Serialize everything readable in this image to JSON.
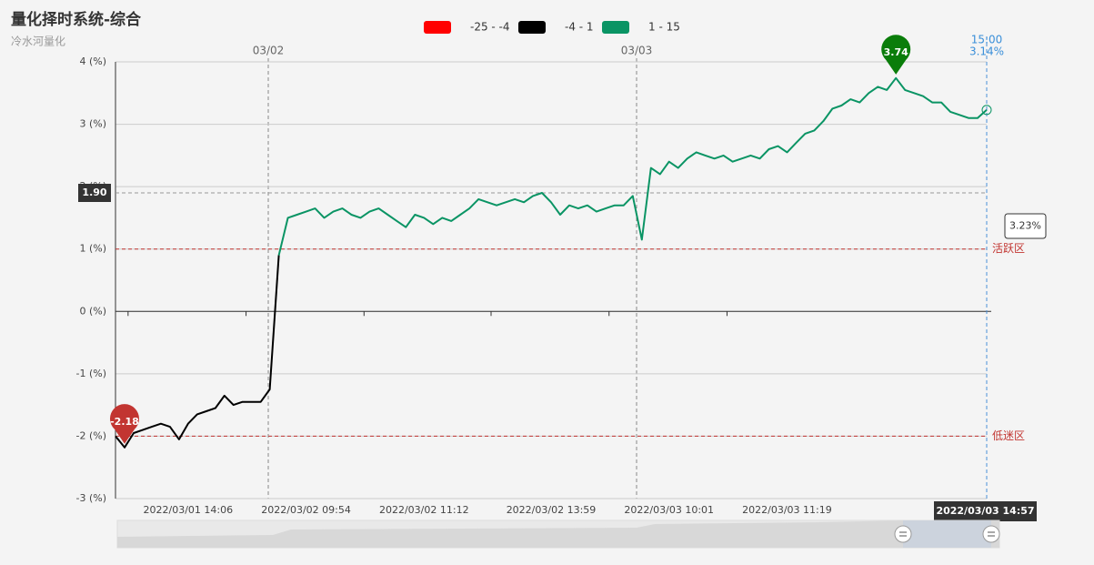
{
  "chart_data": {
    "type": "line",
    "title": "量化择时系统-综合",
    "subtitle": "冷水河量化",
    "visual_map": [
      {
        "min": -25,
        "max": -4,
        "label": "-25 - -4",
        "color": "#ff0000"
      },
      {
        "min": -4,
        "max": 1,
        "label": "-4 - 1",
        "color": "#000000"
      },
      {
        "min": 1,
        "max": 15,
        "label": "1 - 15",
        "color": "#0a9464"
      }
    ],
    "categories": [
      null,
      null,
      null,
      null,
      null,
      null,
      null,
      null,
      "2022/03/01 14:06",
      null,
      null,
      null,
      null,
      null,
      null,
      null,
      null,
      null,
      null,
      null,
      null,
      "2022/03/02 09:54",
      null,
      null,
      null,
      null,
      null,
      null,
      null,
      null,
      null,
      null,
      null,
      null,
      "2022/03/02 11:12",
      null,
      null,
      null,
      null,
      null,
      null,
      null,
      null,
      null,
      null,
      null,
      null,
      null,
      "2022/03/02 13:59",
      null,
      null,
      null,
      null,
      null,
      null,
      null,
      null,
      null,
      null,
      null,
      null,
      "2022/03/03 10:01",
      null,
      null,
      null,
      null,
      null,
      null,
      null,
      null,
      null,
      null,
      null,
      null,
      "2022/03/03 11:19",
      null,
      null,
      null,
      null,
      null,
      null,
      null,
      null,
      null,
      null,
      null,
      null,
      null,
      null,
      null,
      null,
      null,
      null,
      null,
      null,
      null,
      null
    ],
    "values": [
      -2.0,
      -2.18,
      -1.95,
      -1.9,
      -1.85,
      -1.8,
      -1.85,
      -2.05,
      -1.8,
      -1.65,
      -1.6,
      -1.55,
      -1.35,
      -1.5,
      -1.45,
      -1.45,
      -1.45,
      -1.25,
      0.9,
      1.5,
      1.55,
      1.6,
      1.65,
      1.5,
      1.6,
      1.65,
      1.55,
      1.5,
      1.6,
      1.65,
      1.55,
      1.45,
      1.35,
      1.55,
      1.5,
      1.4,
      1.5,
      1.45,
      1.55,
      1.65,
      1.8,
      1.75,
      1.7,
      1.75,
      1.8,
      1.75,
      1.85,
      1.9,
      1.75,
      1.55,
      1.7,
      1.65,
      1.7,
      1.6,
      1.65,
      1.7,
      1.7,
      1.85,
      1.15,
      2.3,
      2.2,
      2.4,
      2.3,
      2.45,
      2.55,
      2.5,
      2.45,
      2.5,
      2.4,
      2.45,
      2.5,
      2.45,
      2.6,
      2.65,
      2.55,
      2.7,
      2.85,
      2.9,
      3.05,
      3.25,
      3.3,
      3.4,
      3.35,
      3.5,
      3.6,
      3.55,
      3.74,
      3.55,
      3.5,
      3.45,
      3.35,
      3.35,
      3.2,
      3.15,
      3.1,
      3.1,
      3.23
    ],
    "ylim": [
      -3,
      4
    ],
    "yticks": [
      {
        "value": -3,
        "label": "-3 (%)"
      },
      {
        "value": -2,
        "label": "-2 (%)"
      },
      {
        "value": -1,
        "label": "-1 (%)"
      },
      {
        "value": 0,
        "label": "0 (%)"
      },
      {
        "value": 1,
        "label": "1 (%)"
      },
      {
        "value": 2,
        "label": "2 (%)"
      },
      {
        "value": 3,
        "label": "3 (%)"
      },
      {
        "value": 4,
        "label": "4 (%)"
      }
    ],
    "grid": true,
    "mark_lines": [
      {
        "value": 1,
        "label": "活跃区"
      },
      {
        "value": -2,
        "label": "低迷区"
      }
    ],
    "mark_points": [
      {
        "value": 3.74,
        "color": "#0a7d0a"
      },
      {
        "value": -2.18,
        "color": "#c23531"
      }
    ],
    "day_labels": [
      "03/02",
      "03/03"
    ],
    "y_pointer": {
      "value": 1.9,
      "label": "1.90"
    },
    "top_pointer": {
      "time": "15:00",
      "value": 3.14,
      "label": "3.14%"
    },
    "tooltip": {
      "value": 3.23,
      "label": "3.23%"
    },
    "x_pointer_label": "2022/03/03 14:57"
  }
}
